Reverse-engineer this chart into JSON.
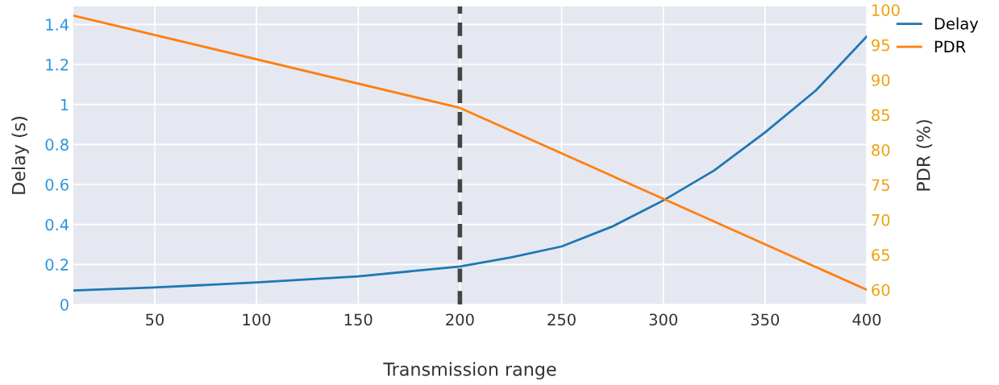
{
  "chart_data": {
    "type": "line",
    "xlabel": "Transmission range",
    "ylabel": "Delay (s)",
    "y2label": "PDR (%)",
    "xlim": [
      10,
      400
    ],
    "xticks": [
      50,
      100,
      150,
      200,
      250,
      300,
      350,
      400
    ],
    "ylim": [
      0,
      1.49
    ],
    "yticks": [
      0,
      0.2,
      0.4,
      0.6,
      0.8,
      1,
      1.2,
      1.4
    ],
    "y2lim": [
      57.9,
      100.5
    ],
    "y2ticks": [
      60,
      65,
      70,
      75,
      80,
      85,
      90,
      95,
      100
    ],
    "grid": true,
    "legend": "top right",
    "line_style": "solid",
    "marker": "none",
    "ref_lines": [
      {
        "axis": "x",
        "value": 200,
        "color": "#444444",
        "line_style": "dashed"
      }
    ],
    "series": [
      {
        "name": "Delay",
        "color": "#1f77b4",
        "x": [
          10,
          50,
          100,
          150,
          200,
          225,
          250,
          275,
          300,
          325,
          350,
          375,
          400
        ],
        "values": [
          0.07,
          0.085,
          0.11,
          0.14,
          0.19,
          0.235,
          0.29,
          0.39,
          0.52,
          0.67,
          0.86,
          1.07,
          1.34
        ]
      },
      {
        "name": "PDR",
        "color": "#ff7f0e",
        "axis": "y2",
        "x": [
          10,
          200,
          400
        ],
        "values": [
          99.2,
          86,
          60
        ]
      }
    ]
  }
}
